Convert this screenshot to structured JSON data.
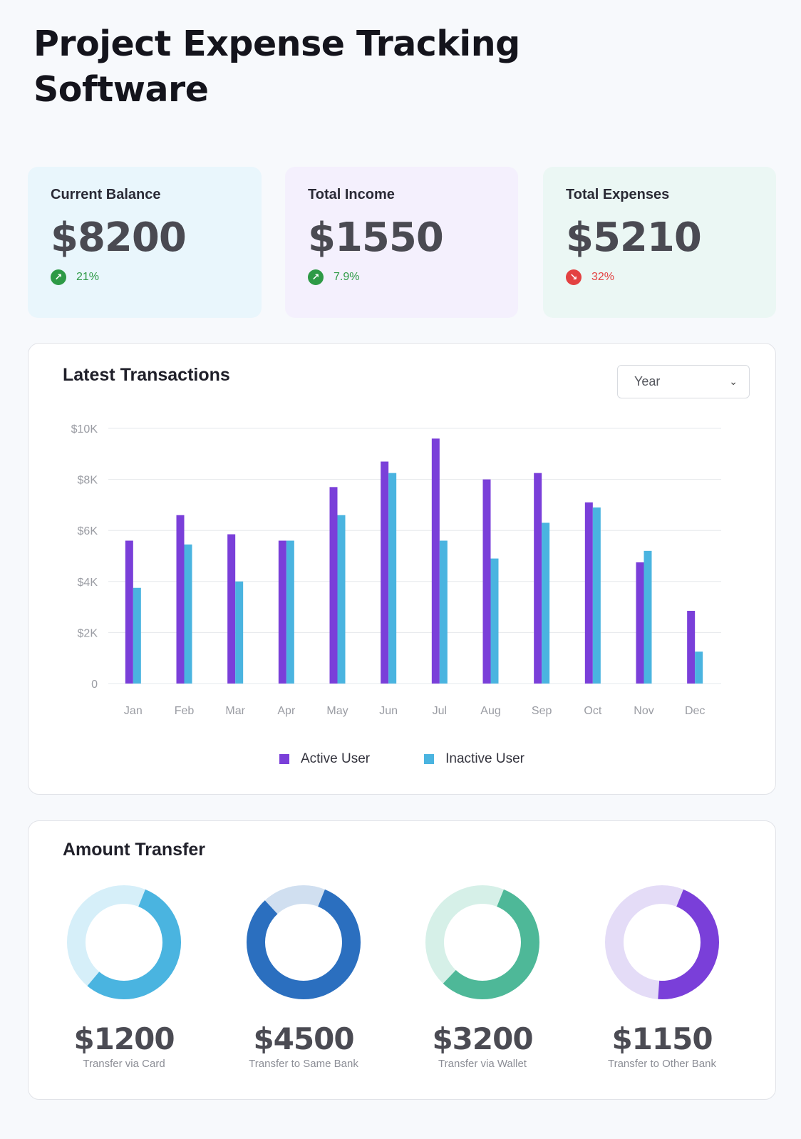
{
  "page": {
    "title": "Project Expense Tracking Software"
  },
  "stats": [
    {
      "label": "Current Balance",
      "value": "$8200",
      "change": "21%",
      "direction": "up",
      "color": "#2e9a46"
    },
    {
      "label": "Total Income",
      "value": "$1550",
      "change": "7.9%",
      "direction": "up",
      "color": "#2e9a46"
    },
    {
      "label": "Total Expenses",
      "value": "$5210",
      "change": "32%",
      "direction": "down",
      "color": "#e34141"
    }
  ],
  "transactions": {
    "title": "Latest Transactions",
    "filter": {
      "selected": "Year",
      "icon": "chevron-down-icon"
    }
  },
  "chart_data": {
    "type": "bar",
    "categories": [
      "Jan",
      "Feb",
      "Mar",
      "Apr",
      "May",
      "Jun",
      "Jul",
      "Aug",
      "Sep",
      "Oct",
      "Nov",
      "Dec"
    ],
    "series": [
      {
        "name": "Active User",
        "color": "#7a3fd9",
        "values": [
          5600,
          6600,
          5850,
          5600,
          7700,
          8700,
          9600,
          8000,
          8250,
          7100,
          4750,
          2850
        ]
      },
      {
        "name": "Inactive User",
        "color": "#4ab4e0",
        "values": [
          3750,
          5450,
          4000,
          5600,
          6600,
          8250,
          5600,
          4900,
          6300,
          6900,
          5200,
          1250
        ]
      }
    ],
    "ylim": [
      0,
      10000
    ],
    "yticks": [
      {
        "value": 0,
        "label": "0"
      },
      {
        "value": 2000,
        "label": "$2K"
      },
      {
        "value": 4000,
        "label": "$4K"
      },
      {
        "value": 6000,
        "label": "$6K"
      },
      {
        "value": 8000,
        "label": "$8K"
      },
      {
        "value": 10000,
        "label": "$10K"
      }
    ],
    "grid": true,
    "legend": "bottom-center"
  },
  "transfers": {
    "title": "Amount Transfer",
    "items": [
      {
        "amount": "$1200",
        "caption": "Transfer via Card",
        "fraction": 0.55,
        "color": "#4ab4e0",
        "track": "#d6eff9"
      },
      {
        "amount": "$4500",
        "caption": "Transfer to Same Bank",
        "fraction": 0.82,
        "color": "#2b6fbf",
        "track": "#d0dff0"
      },
      {
        "amount": "$3200",
        "caption": "Transfer via Wallet",
        "fraction": 0.56,
        "color": "#4eb898",
        "track": "#d6f0e8"
      },
      {
        "amount": "$1150",
        "caption": "Transfer to Other Bank",
        "fraction": 0.45,
        "color": "#7a3fd9",
        "track": "#e4dcf7"
      }
    ]
  }
}
